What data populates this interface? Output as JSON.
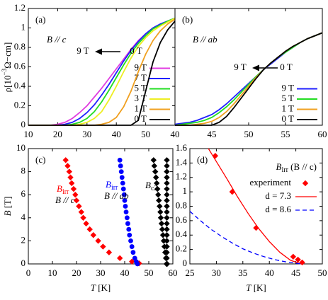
{
  "chart_data": [
    {
      "type": "line",
      "panel_label": "(a)",
      "annotations": [
        "B // c",
        "9 T",
        "0 T"
      ],
      "ylabel": "ρ[10",
      "ylabel_sup": "−3",
      "ylabel_rest": "Ω−cm]",
      "xlim": [
        10,
        60
      ],
      "xticks": [
        10,
        20,
        30,
        40,
        50
      ],
      "ylim": [
        0,
        1.2
      ],
      "yticks": [
        0,
        0.2,
        0.4,
        0.6,
        0.8,
        1,
        1.2
      ],
      "legend": "lower right",
      "x": [
        10,
        12.5,
        15,
        17.5,
        20,
        22.5,
        25,
        27.5,
        30,
        32.5,
        35,
        37.5,
        40,
        42.5,
        45,
        47.5,
        50,
        52.5,
        55,
        57.5,
        60
      ],
      "series": [
        {
          "name": "9 T",
          "color": "#e03ce0",
          "values": [
            0,
            0,
            0,
            0,
            0.01,
            0.03,
            0.07,
            0.13,
            0.2,
            0.29,
            0.38,
            0.48,
            0.58,
            0.68,
            0.78,
            0.87,
            0.94,
            1.0,
            1.04,
            1.07,
            1.1
          ]
        },
        {
          "name": "7 T",
          "color": "#2020ff",
          "values": [
            0,
            0,
            0,
            0,
            0,
            0.01,
            0.03,
            0.07,
            0.13,
            0.21,
            0.31,
            0.42,
            0.54,
            0.66,
            0.77,
            0.86,
            0.94,
            1.0,
            1.04,
            1.07,
            1.1
          ]
        },
        {
          "name": "5 T",
          "color": "#22dd22",
          "values": [
            0,
            0,
            0,
            0,
            0,
            0,
            0.01,
            0.03,
            0.07,
            0.14,
            0.24,
            0.36,
            0.49,
            0.62,
            0.74,
            0.84,
            0.92,
            0.99,
            1.03,
            1.07,
            1.1
          ]
        },
        {
          "name": "3 T",
          "color": "#eeee22",
          "values": [
            0,
            0,
            0,
            0,
            0,
            0,
            0,
            0.01,
            0.03,
            0.07,
            0.14,
            0.26,
            0.4,
            0.55,
            0.69,
            0.81,
            0.9,
            0.97,
            1.02,
            1.06,
            1.1
          ]
        },
        {
          "name": "1 T",
          "color": "#f0a020",
          "values": [
            0,
            0,
            0,
            0,
            0,
            0,
            0,
            0,
            0,
            0,
            0.01,
            0.03,
            0.08,
            0.19,
            0.35,
            0.55,
            0.73,
            0.87,
            0.97,
            1.04,
            1.09
          ]
        },
        {
          "name": "0 T",
          "color": "#000000",
          "values": [
            0,
            0,
            0,
            0,
            0,
            0,
            0,
            0,
            0,
            0,
            0,
            0,
            0,
            0,
            0,
            0.05,
            0.35,
            0.65,
            0.85,
            0.98,
            1.07
          ]
        }
      ]
    },
    {
      "type": "line",
      "panel_label": "(b)",
      "annotations": [
        "B // ab",
        "9 T",
        "0 T"
      ],
      "xlim": [
        40,
        60
      ],
      "xticks": [
        40,
        45,
        50,
        55,
        60
      ],
      "ylim": [
        0,
        1.2
      ],
      "legend": "lower right",
      "x": [
        40,
        41,
        42,
        43,
        44,
        45,
        46,
        47,
        48,
        49,
        50,
        51,
        52,
        53,
        54,
        55,
        56,
        57,
        58,
        59,
        60
      ],
      "series": [
        {
          "name": "9 T",
          "color": "#2020ff",
          "values": [
            0.01,
            0.02,
            0.03,
            0.05,
            0.08,
            0.11,
            0.16,
            0.22,
            0.29,
            0.36,
            0.43,
            0.5,
            0.57,
            0.63,
            0.69,
            0.75,
            0.8,
            0.85,
            0.89,
            0.92,
            0.95
          ]
        },
        {
          "name": "5 T",
          "color": "#22dd22",
          "values": [
            0,
            0.01,
            0.02,
            0.03,
            0.05,
            0.08,
            0.13,
            0.19,
            0.26,
            0.34,
            0.42,
            0.5,
            0.57,
            0.64,
            0.7,
            0.75,
            0.8,
            0.85,
            0.89,
            0.92,
            0.95
          ]
        },
        {
          "name": "1 T",
          "color": "#f0a020",
          "values": [
            0,
            0,
            0,
            0.01,
            0.02,
            0.04,
            0.08,
            0.14,
            0.22,
            0.31,
            0.4,
            0.49,
            0.57,
            0.64,
            0.7,
            0.76,
            0.81,
            0.85,
            0.89,
            0.92,
            0.95
          ]
        },
        {
          "name": "0 T",
          "color": "#000000",
          "values": [
            0,
            0,
            0,
            0,
            0,
            0,
            0.03,
            0.09,
            0.18,
            0.28,
            0.38,
            0.48,
            0.57,
            0.64,
            0.7,
            0.76,
            0.81,
            0.85,
            0.89,
            0.92,
            0.95
          ]
        }
      ]
    },
    {
      "type": "scatter",
      "panel_label": "(c)",
      "xlabel": "T",
      "xlabel_unit": " [K]",
      "ylabel": "B",
      "ylabel_unit": " [T]",
      "xlim": [
        0,
        60
      ],
      "xticks": [
        0,
        10,
        20,
        30,
        40,
        50,
        60
      ],
      "ylim": [
        0,
        10
      ],
      "yticks": [
        0,
        2,
        4,
        6,
        8,
        10
      ],
      "series": [
        {
          "name": "B",
          "name_sub": "irr",
          "name_line2": "B // c",
          "color": "#ff0000",
          "marker": "diamond",
          "x": [
            15.5,
            16.3,
            17,
            17.5,
            18,
            18.8,
            19.5,
            20,
            21,
            22,
            22.8,
            24,
            25.5,
            27,
            29,
            31,
            33.5,
            38,
            43,
            46
          ],
          "values": [
            9,
            8.5,
            8,
            7.5,
            7,
            6.5,
            6,
            5.5,
            5,
            4.5,
            4,
            3.5,
            3,
            2.5,
            2,
            1.5,
            1,
            0.5,
            0.2,
            0.05
          ]
        },
        {
          "name": "B",
          "name_sub": "irr",
          "name_line2": "B // ab",
          "color": "#0000ff",
          "marker": "circle",
          "x": [
            38,
            38.3,
            38.6,
            38.9,
            39.2,
            39.5,
            39.8,
            40,
            40.3,
            40.6,
            41,
            41.3,
            41.7,
            42,
            42.5,
            43,
            43.5,
            44.2,
            44.8,
            45.3
          ],
          "values": [
            9,
            8.5,
            8,
            7.5,
            7,
            6.5,
            6,
            5.5,
            5,
            4.5,
            4,
            3.5,
            3,
            2.5,
            2,
            1.5,
            1,
            0.5,
            0.2,
            0
          ]
        },
        {
          "name": "B",
          "name_sub": "c2",
          "color": "#000000",
          "marker": "diamond",
          "x": [
            52,
            52.3,
            52.7,
            53,
            53.3,
            53.6,
            53.9,
            54.2,
            54.5,
            54.8,
            55,
            55.3,
            55.6,
            55.9,
            56.2,
            56.5,
            56.8,
            57.1,
            57.4,
            57.5,
            57.5,
            57.5,
            57.5,
            57.5,
            57.5,
            57.5,
            57.5,
            57.5,
            57.5,
            57.5,
            57.5,
            57.5,
            57.5,
            57.5,
            57.5,
            57.5,
            57.5,
            57.6
          ],
          "values": [
            9,
            8.5,
            8,
            7.5,
            7,
            6.5,
            6,
            5.5,
            5,
            4.5,
            4,
            3.5,
            3,
            2.5,
            2,
            1.5,
            1,
            0.5,
            0,
            9,
            8.5,
            8,
            7.5,
            7,
            6.5,
            6,
            5.5,
            5,
            4.5,
            4,
            3.5,
            3,
            2.5,
            2,
            1.5,
            1,
            0.5,
            0
          ]
        }
      ]
    },
    {
      "type": "scatter",
      "panel_label": "(d)",
      "xlabel": "T",
      "xlabel_unit": " [K]",
      "legend_title": "B",
      "legend_title_sub": "irr",
      "legend_title_rest": " (B // c)",
      "legend": "upper right",
      "xlim": [
        25,
        50
      ],
      "xticks": [
        25,
        30,
        35,
        40,
        45,
        50
      ],
      "ylim": [
        0,
        1.6
      ],
      "yticks": [
        0,
        0.2,
        0.4,
        0.6,
        0.8,
        1,
        1.2,
        1.4,
        1.6
      ],
      "series": [
        {
          "name": "experiment",
          "color": "#ff0000",
          "mode": "markers",
          "marker": "diamond",
          "x": [
            29.8,
            33,
            37.5,
            44.5,
            45.4,
            46.2
          ],
          "values": [
            1.5,
            1.0,
            0.5,
            0.1,
            0.06,
            0.02
          ]
        },
        {
          "name": "d = 7.3",
          "color": "#ff0000",
          "mode": "line",
          "x": [
            28.5,
            30,
            32,
            34,
            36,
            38,
            40,
            42,
            44,
            46
          ],
          "values": [
            1.6,
            1.42,
            1.18,
            0.93,
            0.7,
            0.49,
            0.31,
            0.16,
            0.05,
            0
          ]
        },
        {
          "name": "d = 8.6",
          "color": "#0000ff",
          "mode": "dashed",
          "x": [
            25,
            27,
            29,
            31,
            33,
            35,
            37,
            39,
            41,
            43,
            45,
            46
          ],
          "values": [
            0.73,
            0.6,
            0.48,
            0.38,
            0.29,
            0.21,
            0.15,
            0.1,
            0.06,
            0.03,
            0.01,
            0
          ]
        }
      ]
    }
  ]
}
